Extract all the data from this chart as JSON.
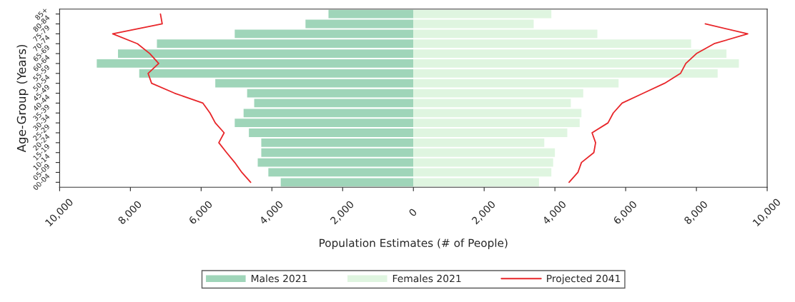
{
  "chart_data": {
    "type": "bar",
    "orientation": "horizontal",
    "ylabel": "Age-Group (Years)",
    "xlabel": "Population Estimates (# of People)",
    "categories": [
      "85+",
      "80-84",
      "75-79",
      "70-74",
      "65-69",
      "60-64",
      "55-59",
      "50-54",
      "45-49",
      "40-44",
      "35-39",
      "30-34",
      "25-29",
      "20-24",
      "15-19",
      "10-14",
      "05-09",
      "00-04"
    ],
    "series": [
      {
        "name": "Males 2021",
        "color": "#9fd5b9",
        "values": [
          -2400,
          -3050,
          -5050,
          -7250,
          -8350,
          -8950,
          -7750,
          -5600,
          -4700,
          -4500,
          -4800,
          -5050,
          -4650,
          -4300,
          -4300,
          -4400,
          -4100,
          -3750
        ]
      },
      {
        "name": "Females 2021",
        "color": "#dff5e0",
        "values": [
          3900,
          3400,
          5200,
          7850,
          8850,
          9200,
          8600,
          5800,
          4800,
          4450,
          4750,
          4700,
          4350,
          3700,
          4000,
          3950,
          3900,
          3550
        ]
      },
      {
        "name": "Projected 2041",
        "type": "line",
        "color": "#e8262a",
        "values": [
          -7150,
          -7100,
          -8500,
          -7800,
          -7450,
          -7200,
          -7500,
          -7400,
          -6750,
          -5950,
          -5750,
          -5600,
          -5350,
          -5500,
          -5280,
          -5050,
          -4850,
          -4600
        ]
      },
      {
        "type": "line",
        "color": "#e8262a",
        "values": [
          null,
          8250,
          9450,
          8500,
          8000,
          7700,
          7550,
          7100,
          6500,
          5900,
          5650,
          5500,
          5050,
          5150,
          5100,
          4750,
          4650,
          4400
        ]
      }
    ],
    "xlim": [
      -10000,
      10000
    ],
    "xticks": [
      {
        "value": -10000,
        "label": "10,000"
      },
      {
        "value": -8000,
        "label": "8,000"
      },
      {
        "value": -6000,
        "label": "6,000"
      },
      {
        "value": -4000,
        "label": "4,000"
      },
      {
        "value": -2000,
        "label": "2,000"
      },
      0,
      {
        "value": 2000,
        "label": "2,000"
      },
      {
        "value": 4000,
        "label": "4,000"
      },
      {
        "value": 6000,
        "label": "6,000"
      },
      {
        "value": 8000,
        "label": "8,000"
      },
      {
        "value": 10000,
        "label": "10,000"
      }
    ],
    "stacked": true,
    "legend": "bottom",
    "grid": false,
    "marker": "none",
    "line_style": "solid"
  }
}
